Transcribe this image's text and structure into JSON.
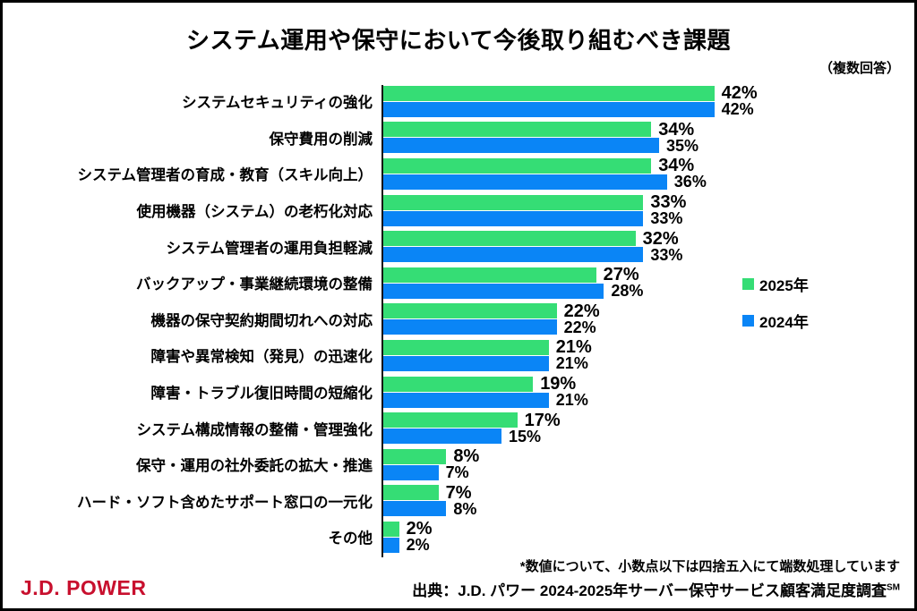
{
  "title": "システム運用や保守において今後取り組むべき課題",
  "note": "（複数回答）",
  "footnote": "*数値について、小数点以下は四捨五入にて端数処理しています",
  "source": {
    "text": "出典：J.D. パワー 2024-2025年サーバー保守サービス顧客満足度調査",
    "superscript": "SM"
  },
  "logo": {
    "text": "J.D. POWER",
    "color": "#C8102E"
  },
  "colors": {
    "series_2025": "#35DD75",
    "series_2024": "#0A85F6",
    "axis": "#151515"
  },
  "chart_data": {
    "type": "bar",
    "orientation": "horizontal",
    "title": "システム運用や保守において今後取り組むべき課題",
    "categories": [
      "システムセキュリティの強化",
      "保守費用の削減",
      "システム管理者の育成・教育（スキル向上）",
      "使用機器（システム）の老朽化対応",
      "システム管理者の運用負担軽減",
      "バックアップ・事業継続環境の整備",
      "機器の保守契約期間切れへの対応",
      "障害や異常検知（発見）の迅速化",
      "障害・トラブル復旧時間の短縮化",
      "システム構成情報の整備・管理強化",
      "保守・運用の社外委託の拡大・推進",
      "ハード・ソフト含めたサポート窓口の一元化",
      "その他"
    ],
    "series": [
      {
        "name": "2025年",
        "color": "#35DD75",
        "values": [
          42,
          34,
          34,
          33,
          32,
          27,
          22,
          21,
          19,
          17,
          8,
          7,
          2
        ]
      },
      {
        "name": "2024年",
        "color": "#0A85F6",
        "values": [
          42,
          35,
          36,
          33,
          33,
          28,
          22,
          21,
          21,
          15,
          7,
          8,
          2
        ]
      }
    ],
    "value_suffix": "%",
    "xlim": [
      0,
      45
    ],
    "grid": false,
    "legend_position": "right"
  }
}
